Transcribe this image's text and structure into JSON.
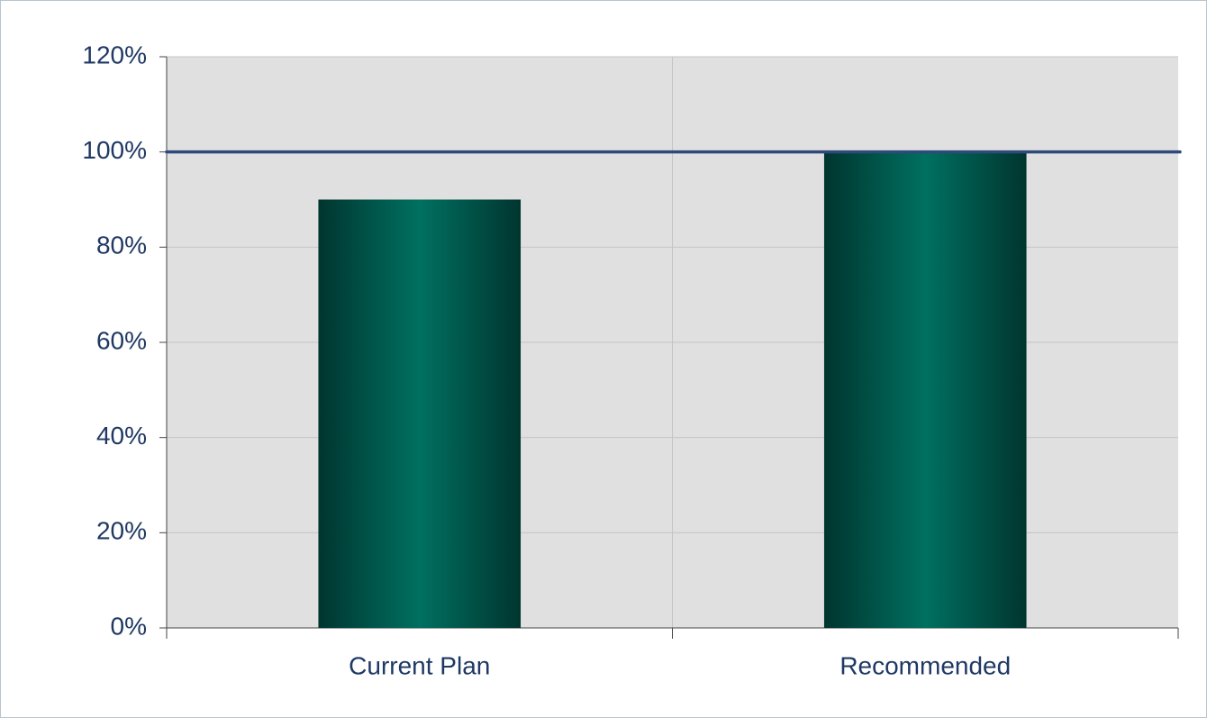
{
  "chart_data": {
    "type": "bar",
    "categories": [
      "Current Plan",
      "Recommended"
    ],
    "values": [
      90,
      100
    ],
    "color": "#007060",
    "reference_line": 100,
    "ylim": [
      0,
      120
    ],
    "yticks": [
      {
        "value": 0,
        "label": "0%"
      },
      {
        "value": 20,
        "label": "20%"
      },
      {
        "value": 40,
        "label": "40%"
      },
      {
        "value": 60,
        "label": "60%"
      },
      {
        "value": 80,
        "label": "80%"
      },
      {
        "value": 100,
        "label": "100%"
      },
      {
        "value": 120,
        "label": "120%"
      }
    ],
    "grid": true
  }
}
